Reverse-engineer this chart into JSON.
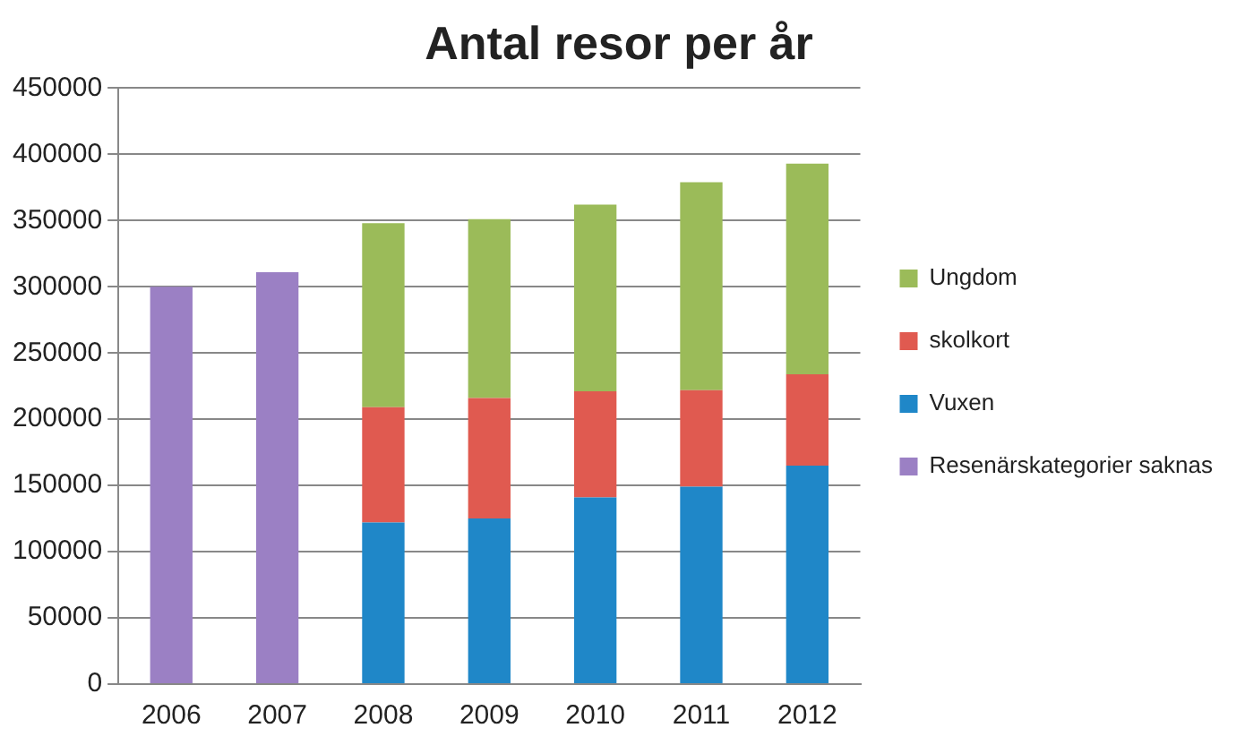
{
  "chart_data": {
    "type": "bar",
    "title": "Antal resor per år",
    "stacked": true,
    "categories": [
      "2006",
      "2007",
      "2008",
      "2009",
      "2010",
      "2011",
      "2012"
    ],
    "series": [
      {
        "name": "Resenärskategorier saknas",
        "color": "#9b80c4",
        "values": [
          300000,
          311000,
          null,
          null,
          null,
          null,
          null
        ]
      },
      {
        "name": "Vuxen",
        "color": "#1f87c8",
        "values": [
          null,
          null,
          122000,
          125000,
          141000,
          149000,
          165000
        ]
      },
      {
        "name": "skolkort",
        "color": "#e05a50",
        "values": [
          null,
          null,
          87000,
          91000,
          80000,
          73000,
          69000
        ]
      },
      {
        "name": "Ungdom",
        "color": "#9bbb59",
        "values": [
          null,
          null,
          139000,
          135000,
          141000,
          157000,
          159000
        ]
      }
    ],
    "ylim": [
      0,
      450000
    ],
    "yticks": [
      0,
      50000,
      100000,
      150000,
      200000,
      250000,
      300000,
      350000,
      400000,
      450000
    ],
    "grid": "y",
    "legend": "right"
  }
}
